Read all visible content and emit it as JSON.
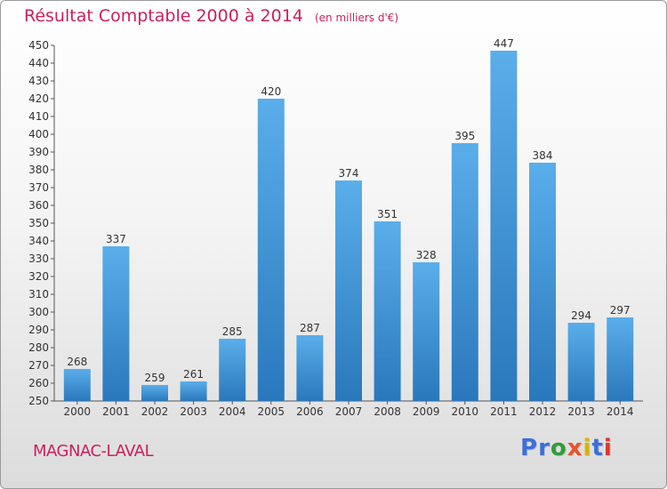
{
  "title": "Résultat Comptable 2000 à 2014",
  "subtitle": "(en milliers d'€)",
  "location": "MAGNAC-LAVAL",
  "brand": {
    "text": "Proxiti",
    "letter_colors": [
      "#3a6fd8",
      "#3a6fd8",
      "#2e9e3a",
      "#e8542a",
      "#d8b400",
      "#3a6fd8",
      "#e0342a"
    ]
  },
  "colors": {
    "bar_top": "#5aaeea",
    "bar_bottom": "#2a78bc",
    "text": "#333333",
    "accent": "#cc1f5e"
  },
  "chart_data": {
    "type": "bar",
    "categories": [
      "2000",
      "2001",
      "2002",
      "2003",
      "2004",
      "2005",
      "2006",
      "2007",
      "2008",
      "2009",
      "2010",
      "2011",
      "2012",
      "2013",
      "2014"
    ],
    "values": [
      268,
      337,
      259,
      261,
      285,
      420,
      287,
      374,
      351,
      328,
      395,
      447,
      384,
      294,
      297
    ],
    "ylim": [
      250,
      450
    ],
    "yticks": [
      250,
      260,
      270,
      280,
      290,
      300,
      310,
      320,
      330,
      340,
      350,
      360,
      370,
      380,
      390,
      400,
      410,
      420,
      430,
      440,
      450
    ],
    "grid": false,
    "data_labels": true
  }
}
